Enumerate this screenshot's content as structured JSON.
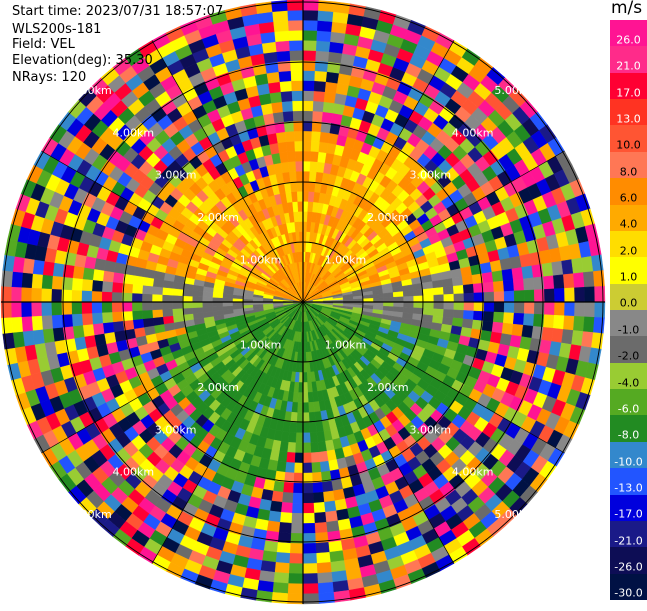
{
  "header": {
    "start_time": "Start time: 2023/07/31 18:57:07",
    "instrument": "WLS200s-181",
    "field": "Field: VEL",
    "elevation": "Elevation(deg): 35.30",
    "nrays": "NRays: 120"
  },
  "colorbar": {
    "unit": "m/s",
    "ticks": [
      "26.0",
      "21.0",
      "17.0",
      "13.0",
      "10.0",
      "8.0",
      "6.0",
      "4.0",
      "2.0",
      "1.0",
      "0.0",
      "-1.0",
      "-2.0",
      "-4.0",
      "-6.0",
      "-8.0",
      "-10.0",
      "-13.0",
      "-17.0",
      "-21.0",
      "-26.0",
      "-30.0"
    ],
    "colors": [
      "#ff1493",
      "#ff2b8a",
      "#ff0033",
      "#ff3322",
      "#ff5533",
      "#ff7755",
      "#ff8c00",
      "#ffaa00",
      "#ffdd00",
      "#ffff00",
      "#cccc33",
      "#888888",
      "#6b6b6b",
      "#99cc33",
      "#55aa22",
      "#228b22",
      "#3388cc",
      "#2255ff",
      "#0000dd",
      "#1a1a88",
      "#0d0d55",
      "#001144"
    ]
  },
  "chart_data": {
    "type": "heatmap",
    "subtype": "ppi-polar",
    "field": "VEL",
    "units": "m/s",
    "nrays": 120,
    "range_ring_labels": [
      "1.00km",
      "2.00km",
      "3.00km",
      "4.00km",
      "5.00km"
    ],
    "sectors": [
      {
        "region": "north half near range",
        "velocity_range": [
          2.0,
          10.0
        ],
        "dominant": "orange/yellow"
      },
      {
        "region": "east-west band",
        "velocity_range": [
          -1.0,
          1.0
        ],
        "dominant": "gray"
      },
      {
        "region": "south half near range",
        "velocity_range": [
          -8.0,
          -2.0
        ],
        "dominant": "green"
      },
      {
        "region": "far range all azimuths",
        "velocity_range": [
          -30.0,
          26.0
        ],
        "dominant": "noisy mixed"
      }
    ]
  }
}
